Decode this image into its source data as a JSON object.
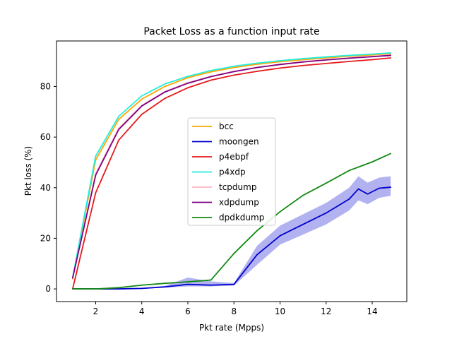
{
  "chart_data": {
    "type": "line",
    "title": "Packet Loss as a function input rate",
    "xlabel": "Pkt rate (Mpps)",
    "ylabel": "Pkt loss (%)",
    "xlim": [
      0.3,
      15.5
    ],
    "ylim": [
      -5,
      98
    ],
    "xticks": [
      2,
      4,
      6,
      8,
      10,
      12,
      14
    ],
    "yticks": [
      0,
      20,
      40,
      60,
      80
    ],
    "grid": false,
    "legend_position": "center",
    "x": [
      1,
      2,
      3,
      4,
      5,
      6,
      7,
      8,
      9,
      10,
      11,
      12,
      13,
      14,
      14.8
    ],
    "series": [
      {
        "name": "bcc",
        "color": "#ffa500",
        "values": [
          4,
          51,
          67,
          75,
          80,
          83.5,
          85.8,
          87.5,
          88.8,
          89.8,
          90.6,
          91.3,
          92,
          92.5,
          93
        ]
      },
      {
        "name": "moongen",
        "color": "#0000cd",
        "x": [
          1,
          2,
          3,
          4,
          5,
          6,
          7,
          8,
          9,
          10,
          11,
          12,
          13,
          13.4,
          13.8,
          14.3,
          14.8
        ],
        "values": [
          0,
          0,
          0,
          0.2,
          0.8,
          1.8,
          1.5,
          1.8,
          13.5,
          21,
          25.5,
          30,
          35.5,
          39.5,
          37.5,
          39.8,
          40.2
        ],
        "band_low": [
          0,
          0,
          0,
          0,
          0.5,
          1,
          1,
          1.3,
          9.5,
          17.5,
          21.5,
          25.5,
          31,
          35,
          33.5,
          36,
          36.8
        ],
        "band_high": [
          0,
          0,
          0,
          0.4,
          1.2,
          4.5,
          3,
          2.3,
          17,
          25,
          29.5,
          34,
          40,
          44.5,
          42,
          44,
          44.5
        ]
      },
      {
        "name": "p4ebpf",
        "color": "#e31a1c",
        "values": [
          0,
          38,
          58.8,
          69,
          75.3,
          79.5,
          82.5,
          84.5,
          86,
          87.3,
          88.3,
          89.1,
          89.9,
          90.6,
          91.3
        ]
      },
      {
        "name": "p4xdp",
        "color": "#22eedd",
        "values": [
          4.5,
          52.5,
          68.2,
          76.3,
          81,
          84,
          86.3,
          88,
          89.2,
          90.2,
          91,
          91.7,
          92.3,
          92.8,
          93.3
        ]
      },
      {
        "name": "tcpdump",
        "color": "#ffb6c1",
        "values": [
          4.3,
          45.5,
          63.5,
          72.5,
          78,
          81.5,
          84,
          86,
          87.6,
          88.8,
          89.8,
          90.6,
          91.3,
          91.9,
          92.4
        ]
      },
      {
        "name": "xdpdump",
        "color": "#800080",
        "values": [
          4.3,
          45,
          63,
          72.3,
          77.8,
          81.3,
          83.9,
          85.9,
          87.5,
          88.7,
          89.7,
          90.5,
          91.2,
          91.8,
          92.3
        ]
      },
      {
        "name": "dpdkdump",
        "color": "#138a13",
        "values": [
          0,
          0,
          0.5,
          1.5,
          2.2,
          2.8,
          3.5,
          14,
          23,
          30.5,
          37,
          41.8,
          46.8,
          50.2,
          53.5
        ]
      }
    ]
  }
}
